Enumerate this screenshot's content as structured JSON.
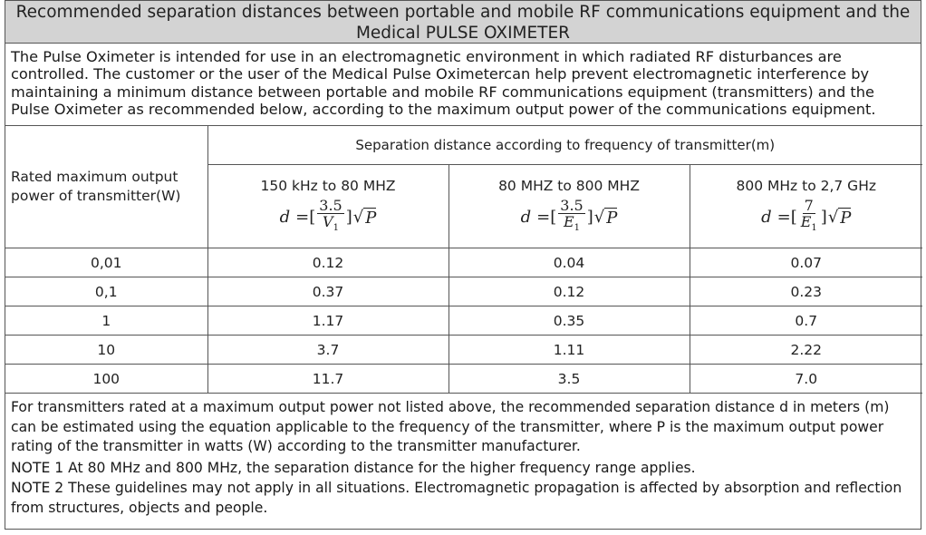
{
  "title": "Recommended separation distances between portable and mobile RF communications equipment and the Medical PULSE OXIMETER",
  "intro": "The Pulse Oximeter is intended for use in an electromagnetic environment in which radiated RF disturbances are controlled. The customer or the user of the Medical  Pulse Oximetercan help prevent electromagnetic interference by maintaining a minimum distance between portable and mobile RF communications equipment (transmitters) and the Pulse Oximeter as recommended below, according to the maximum output power of the communications equipment.",
  "table": {
    "left_header": "Rated maximum output power of  transmitter(W)",
    "group_header": "Separation distance according to  frequency of transmitter(m)",
    "bands": [
      {
        "label": "150 kHz to 80 MHZ",
        "formula": {
          "d": "d",
          "eq": "=[",
          "num": "3.5",
          "den": "V",
          "den_sub": "1",
          "close": "]",
          "sqrt": "√",
          "p": "P"
        }
      },
      {
        "label": "80 MHZ to 800 MHZ",
        "formula": {
          "d": "d",
          "eq": "=[",
          "num": "3.5",
          "den": "E",
          "den_sub": "1",
          "close": "]",
          "sqrt": "√",
          "p": "P"
        }
      },
      {
        "label": "800 MHz to 2,7 GHz",
        "formula": {
          "d": "d",
          "eq": "=[",
          "num": "7",
          "den": "E",
          "den_sub": "1",
          "close": "]",
          "sqrt": "√",
          "p": "P"
        }
      }
    ],
    "rows": [
      {
        "power": "0,01",
        "values": [
          "0.12",
          "0.04",
          "0.07"
        ]
      },
      {
        "power": "0,1",
        "values": [
          "0.37",
          "0.12",
          "0.23"
        ]
      },
      {
        "power": "1",
        "values": [
          "1.17",
          "0.35",
          "0.7"
        ]
      },
      {
        "power": "10",
        "values": [
          "3.7",
          "1.11",
          "2.22"
        ]
      },
      {
        "power": "100",
        "values": [
          "11.7",
          "3.5",
          "7.0"
        ]
      }
    ]
  },
  "notes": {
    "paragraph": "For transmitters rated at a maximum output power not listed above, the recommended separation distance d in meters (m) can be estimated using the equation applicable to the frequency of the transmitter, where P is the maximum output power rating of the transmitter in watts (W) according to the transmitter manufacturer.",
    "note1": "NOTE 1 At 80 MHz and 800 MHz, the separation distance for the higher frequency range applies.",
    "note2": "NOTE 2 These guidelines may not apply in all situations. Electromagnetic propagation is affected by absorption and reflection from structures, objects and people."
  }
}
